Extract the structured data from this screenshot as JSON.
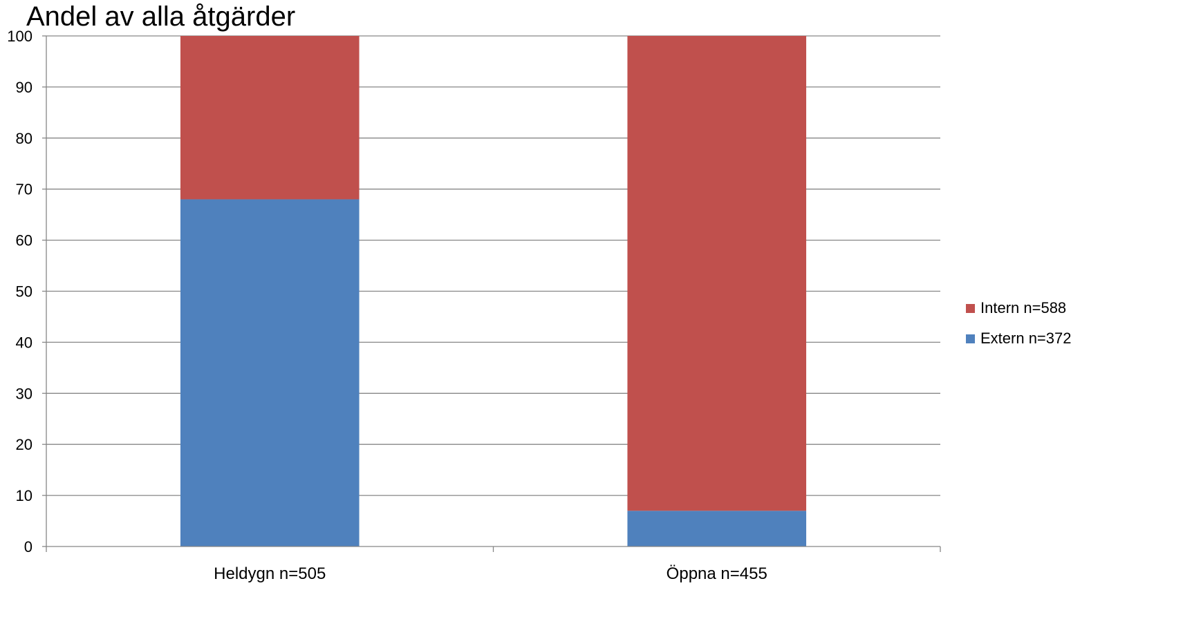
{
  "chart_data": {
    "type": "bar",
    "stacked": true,
    "title": "Andel av alla åtgärder",
    "xlabel": "",
    "ylabel": "",
    "categories": [
      "Heldygn n=505",
      "Öppna n=455"
    ],
    "series": [
      {
        "name": "Extern n=372",
        "color": "#4F81BD",
        "values": [
          68,
          7
        ]
      },
      {
        "name": "Intern n=588",
        "color": "#C0504D",
        "values": [
          32,
          93
        ]
      }
    ],
    "ylim": [
      0,
      100
    ],
    "yticks": [
      "0",
      "10",
      "20",
      "30",
      "40",
      "50",
      "60",
      "70",
      "80",
      "90",
      "100"
    ],
    "grid": true,
    "legend_position": "right"
  }
}
